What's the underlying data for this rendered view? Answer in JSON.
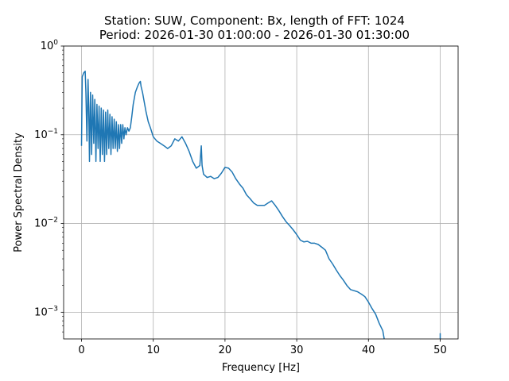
{
  "chart_data": {
    "type": "line",
    "title_lines": [
      "Station: SUW, Component: Bx, length of FFT: 1024",
      "Period: 2026-01-30 01:00:00 - 2026-01-30 01:30:00"
    ],
    "xlabel": "Frequency [Hz]",
    "ylabel": "Power Spectral Density",
    "xlim": [
      -2.5,
      52.5
    ],
    "ylim": [
      0.0005,
      1
    ],
    "yscale": "log",
    "grid": true,
    "x_ticks": [
      {
        "value": 0,
        "label": "0"
      },
      {
        "value": 10,
        "label": "10"
      },
      {
        "value": 20,
        "label": "20"
      },
      {
        "value": 30,
        "label": "30"
      },
      {
        "value": 40,
        "label": "40"
      },
      {
        "value": 50,
        "label": "50"
      }
    ],
    "y_ticks": [
      {
        "value": 0.001,
        "base": "10",
        "exp": "−3"
      },
      {
        "value": 0.01,
        "base": "10",
        "exp": "−2"
      },
      {
        "value": 0.1,
        "base": "10",
        "exp": "−1"
      },
      {
        "value": 1,
        "base": "10",
        "exp": "0"
      }
    ],
    "series": [
      {
        "color": "#1f77b4",
        "points": [
          [
            0.0,
            0.075
          ],
          [
            0.1,
            0.45
          ],
          [
            0.3,
            0.5
          ],
          [
            0.5,
            0.52
          ],
          [
            0.6,
            0.3
          ],
          [
            0.75,
            0.085
          ],
          [
            0.9,
            0.42
          ],
          [
            1.0,
            0.2
          ],
          [
            1.1,
            0.05
          ],
          [
            1.25,
            0.3
          ],
          [
            1.4,
            0.06
          ],
          [
            1.55,
            0.28
          ],
          [
            1.7,
            0.08
          ],
          [
            1.85,
            0.25
          ],
          [
            2.0,
            0.05
          ],
          [
            2.15,
            0.22
          ],
          [
            2.3,
            0.07
          ],
          [
            2.45,
            0.21
          ],
          [
            2.6,
            0.05
          ],
          [
            2.75,
            0.2
          ],
          [
            2.9,
            0.06
          ],
          [
            3.05,
            0.19
          ],
          [
            3.2,
            0.05
          ],
          [
            3.35,
            0.18
          ],
          [
            3.5,
            0.06
          ],
          [
            3.65,
            0.19
          ],
          [
            3.8,
            0.07
          ],
          [
            3.95,
            0.17
          ],
          [
            4.1,
            0.06
          ],
          [
            4.25,
            0.16
          ],
          [
            4.4,
            0.07
          ],
          [
            4.55,
            0.15
          ],
          [
            4.7,
            0.07
          ],
          [
            4.85,
            0.14
          ],
          [
            5.0,
            0.065
          ],
          [
            5.15,
            0.13
          ],
          [
            5.3,
            0.07
          ],
          [
            5.45,
            0.13
          ],
          [
            5.6,
            0.08
          ],
          [
            5.75,
            0.13
          ],
          [
            5.9,
            0.09
          ],
          [
            6.05,
            0.12
          ],
          [
            6.2,
            0.1
          ],
          [
            6.4,
            0.12
          ],
          [
            6.6,
            0.11
          ],
          [
            6.8,
            0.12
          ],
          [
            7.0,
            0.16
          ],
          [
            7.2,
            0.22
          ],
          [
            7.5,
            0.3
          ],
          [
            7.8,
            0.35
          ],
          [
            8.0,
            0.38
          ],
          [
            8.2,
            0.4
          ],
          [
            8.3,
            0.35
          ],
          [
            8.5,
            0.3
          ],
          [
            8.8,
            0.22
          ],
          [
            9.0,
            0.18
          ],
          [
            9.3,
            0.14
          ],
          [
            9.6,
            0.12
          ],
          [
            10.0,
            0.095
          ],
          [
            10.5,
            0.085
          ],
          [
            11.0,
            0.08
          ],
          [
            11.5,
            0.075
          ],
          [
            12.0,
            0.07
          ],
          [
            12.5,
            0.075
          ],
          [
            13.0,
            0.09
          ],
          [
            13.5,
            0.085
          ],
          [
            14.0,
            0.095
          ],
          [
            14.5,
            0.08
          ],
          [
            15.0,
            0.065
          ],
          [
            15.5,
            0.05
          ],
          [
            16.0,
            0.042
          ],
          [
            16.5,
            0.045
          ],
          [
            16.7,
            0.075
          ],
          [
            16.8,
            0.045
          ],
          [
            17.0,
            0.036
          ],
          [
            17.5,
            0.033
          ],
          [
            18.0,
            0.034
          ],
          [
            18.5,
            0.032
          ],
          [
            19.0,
            0.033
          ],
          [
            19.5,
            0.037
          ],
          [
            20.0,
            0.043
          ],
          [
            20.5,
            0.042
          ],
          [
            21.0,
            0.038
          ],
          [
            21.5,
            0.032
          ],
          [
            22.0,
            0.028
          ],
          [
            22.5,
            0.025
          ],
          [
            23.0,
            0.021
          ],
          [
            23.5,
            0.019
          ],
          [
            24.0,
            0.017
          ],
          [
            24.5,
            0.016
          ],
          [
            25.0,
            0.016
          ],
          [
            25.5,
            0.016
          ],
          [
            26.0,
            0.017
          ],
          [
            26.5,
            0.018
          ],
          [
            27.0,
            0.016
          ],
          [
            27.5,
            0.014
          ],
          [
            28.0,
            0.012
          ],
          [
            28.5,
            0.0105
          ],
          [
            29.0,
            0.0095
          ],
          [
            29.5,
            0.0085
          ],
          [
            30.0,
            0.0075
          ],
          [
            30.5,
            0.0065
          ],
          [
            31.0,
            0.0062
          ],
          [
            31.5,
            0.0063
          ],
          [
            32.0,
            0.006
          ],
          [
            32.5,
            0.006
          ],
          [
            33.0,
            0.0058
          ],
          [
            33.5,
            0.0054
          ],
          [
            34.0,
            0.005
          ],
          [
            34.5,
            0.004
          ],
          [
            35.0,
            0.0035
          ],
          [
            35.5,
            0.003
          ],
          [
            36.0,
            0.0026
          ],
          [
            36.5,
            0.0023
          ],
          [
            37.0,
            0.002
          ],
          [
            37.5,
            0.0018
          ],
          [
            38.0,
            0.00175
          ],
          [
            38.5,
            0.0017
          ],
          [
            39.0,
            0.0016
          ],
          [
            39.5,
            0.0015
          ],
          [
            40.0,
            0.0013
          ],
          [
            40.5,
            0.0011
          ],
          [
            41.0,
            0.00095
          ],
          [
            41.5,
            0.00075
          ],
          [
            42.0,
            0.00062
          ],
          [
            42.2,
            0.0005
          ]
        ]
      },
      {
        "color": "#1f77b4",
        "points": [
          [
            50.0,
            0.0005
          ],
          [
            50.0,
            0.00058
          ]
        ]
      }
    ]
  }
}
